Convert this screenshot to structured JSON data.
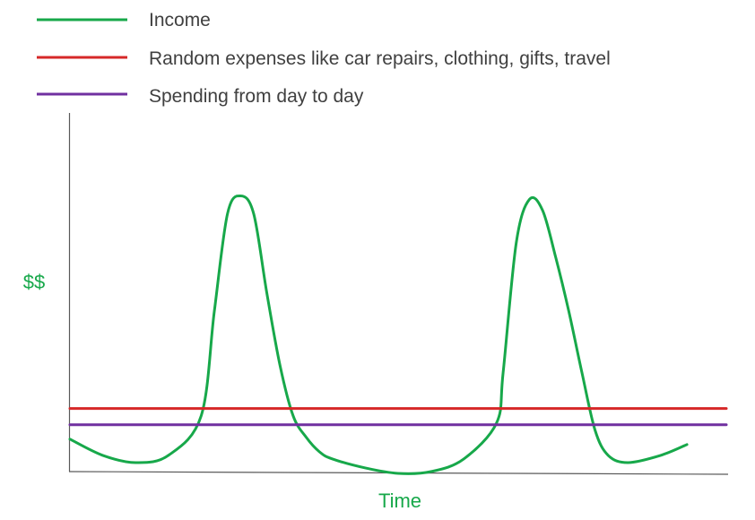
{
  "chart_data": {
    "type": "line",
    "title": "",
    "xlabel": "Time",
    "ylabel": "$$",
    "xlim": [
      0,
      100
    ],
    "ylim": [
      0,
      100
    ],
    "grid": false,
    "legend_position": "top-left",
    "series": [
      {
        "name": "Income",
        "color": "#17a84a",
        "x": [
          0,
          5,
          10,
          15,
          20,
          22,
          24,
          26,
          28,
          30,
          32,
          34,
          36,
          38,
          40,
          45,
          50,
          55,
          60,
          65,
          66,
          68,
          70,
          72,
          74,
          76,
          78,
          80,
          82,
          85,
          90,
          94
        ],
        "values": [
          9.5,
          5,
          3,
          5,
          16,
          45,
          72,
          77,
          72,
          50,
          30,
          16,
          10,
          6,
          4,
          1.5,
          0,
          0.5,
          4,
          14,
          28,
          64,
          76,
          73,
          60,
          45,
          28,
          12,
          5,
          3,
          5,
          8
        ]
      },
      {
        "name": "Random expenses like car repairs, clothing, gifts, travel",
        "color": "#d62828",
        "x": [
          0,
          100
        ],
        "values": [
          18,
          18
        ]
      },
      {
        "name": "Spending from day to day",
        "color": "#7030a0",
        "x": [
          0,
          100
        ],
        "values": [
          13.5,
          13.5
        ]
      }
    ]
  }
}
